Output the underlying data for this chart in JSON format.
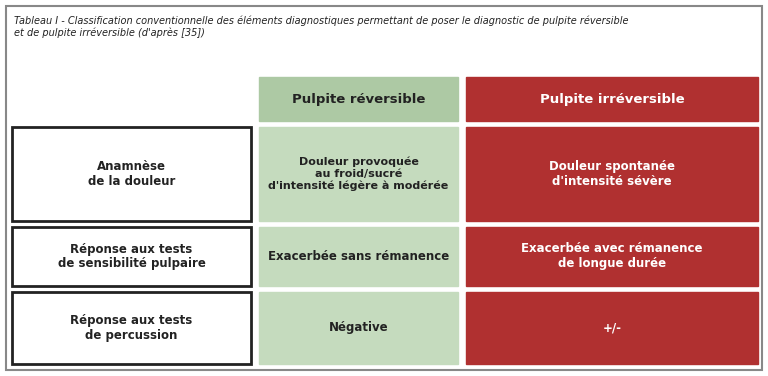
{
  "title_line1": "Tableau I - Classification conventionnelle des éléments diagnostiques permettant de poser le diagnostic de pulpite réversible",
  "title_line2": "et de pulpite irréversible (d'après [35])",
  "col_headers": [
    "Pulpite réversible",
    "Pulpite irréversible"
  ],
  "row_labels": [
    "Anamnèse\nde la douleur",
    "Réponse aux tests\nde sensibilité pulpaire",
    "Réponse aux tests\nde percussion"
  ],
  "green_cells": [
    "Douleur provoquée\nau froid/sucré\nd'intensité légère à modérée",
    "Exacerbée sans rémanence",
    "Négative"
  ],
  "red_cells": [
    "Douleur spontanée\nd'intensité sévère",
    "Exacerbée avec rémanence\nde longue durée",
    "+/-"
  ],
  "green_header_bg": "#adc9a4",
  "red_header_bg": "#b03030",
  "green_cell_bg": "#c5dbbe",
  "red_cell_bg": "#b03030",
  "white_cell_bg": "#ffffff",
  "border_color": "#222222",
  "header_text_color_green": "#222222",
  "header_text_color_red": "#ffffff",
  "cell_text_color_green": "#222222",
  "cell_text_color_red": "#ffffff",
  "label_text_color": "#222222",
  "outer_border_color": "#888888",
  "bg_color": "#ffffff",
  "figw": 7.68,
  "figh": 3.76,
  "dpi": 100
}
